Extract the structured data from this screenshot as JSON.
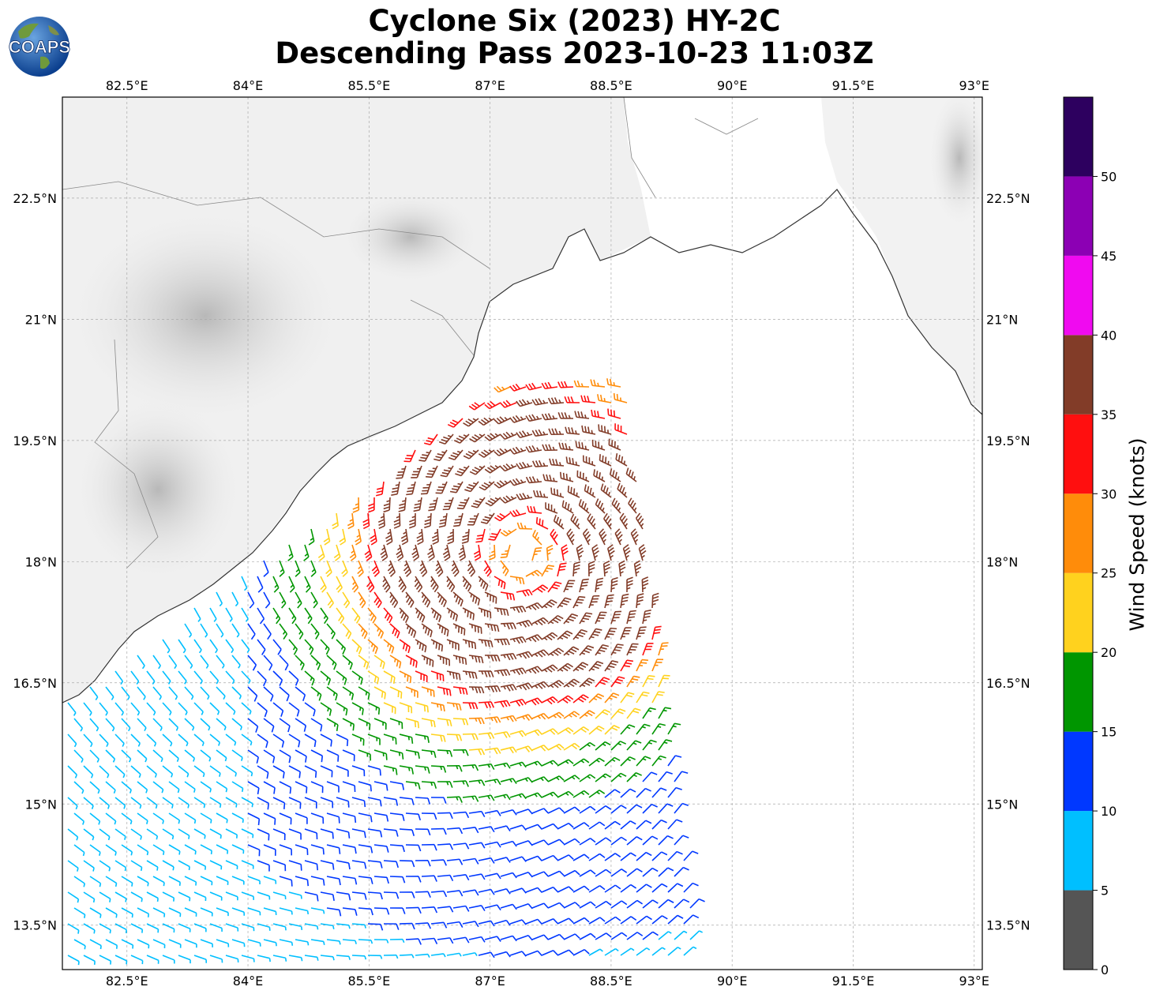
{
  "title": {
    "line1": "Cyclone Six (2023) HY-2C",
    "line2": "Descending Pass 2023-10-23 11:03Z"
  },
  "logo": {
    "text": "COAPS",
    "icon": "globe-logo"
  },
  "map": {
    "lon_range": [
      81.7,
      93.1
    ],
    "lat_range": [
      12.95,
      23.75
    ],
    "lon_ticks": [
      "82.5°E",
      "84°E",
      "85.5°E",
      "87°E",
      "88.5°E",
      "90°E",
      "91.5°E",
      "93°E"
    ],
    "lat_ticks": [
      "22.5°N",
      "21°N",
      "19.5°N",
      "18°N",
      "16.5°N",
      "15°N",
      "13.5°N"
    ],
    "gridlines": true,
    "cyclone_center": {
      "lon": 87.4,
      "lat": 18.1
    },
    "swath_edge": "east boundary from 88.7°E at 20.2°N to 89.6°E at 13°N"
  },
  "colorbar": {
    "label": "Wind Speed (knots)",
    "ticks": [
      "0",
      "5",
      "10",
      "15",
      "20",
      "25",
      "30",
      "35",
      "40",
      "45",
      "50"
    ],
    "bins": [
      {
        "from": 0,
        "to": 5,
        "color": "#555555"
      },
      {
        "from": 5,
        "to": 10,
        "color": "#00bfff"
      },
      {
        "from": 10,
        "to": 15,
        "color": "#0038ff"
      },
      {
        "from": 15,
        "to": 20,
        "color": "#009600"
      },
      {
        "from": 20,
        "to": 25,
        "color": "#ffd21e"
      },
      {
        "from": 25,
        "to": 30,
        "color": "#ff8c0a"
      },
      {
        "from": 30,
        "to": 35,
        "color": "#ff0f0f"
      },
      {
        "from": 35,
        "to": 40,
        "color": "#823c28"
      },
      {
        "from": 40,
        "to": 45,
        "color": "#f00af0"
      },
      {
        "from": 45,
        "to": 50,
        "color": "#8c00b4"
      },
      {
        "from": 50,
        "to": 55,
        "color": "#2d005f"
      }
    ]
  }
}
